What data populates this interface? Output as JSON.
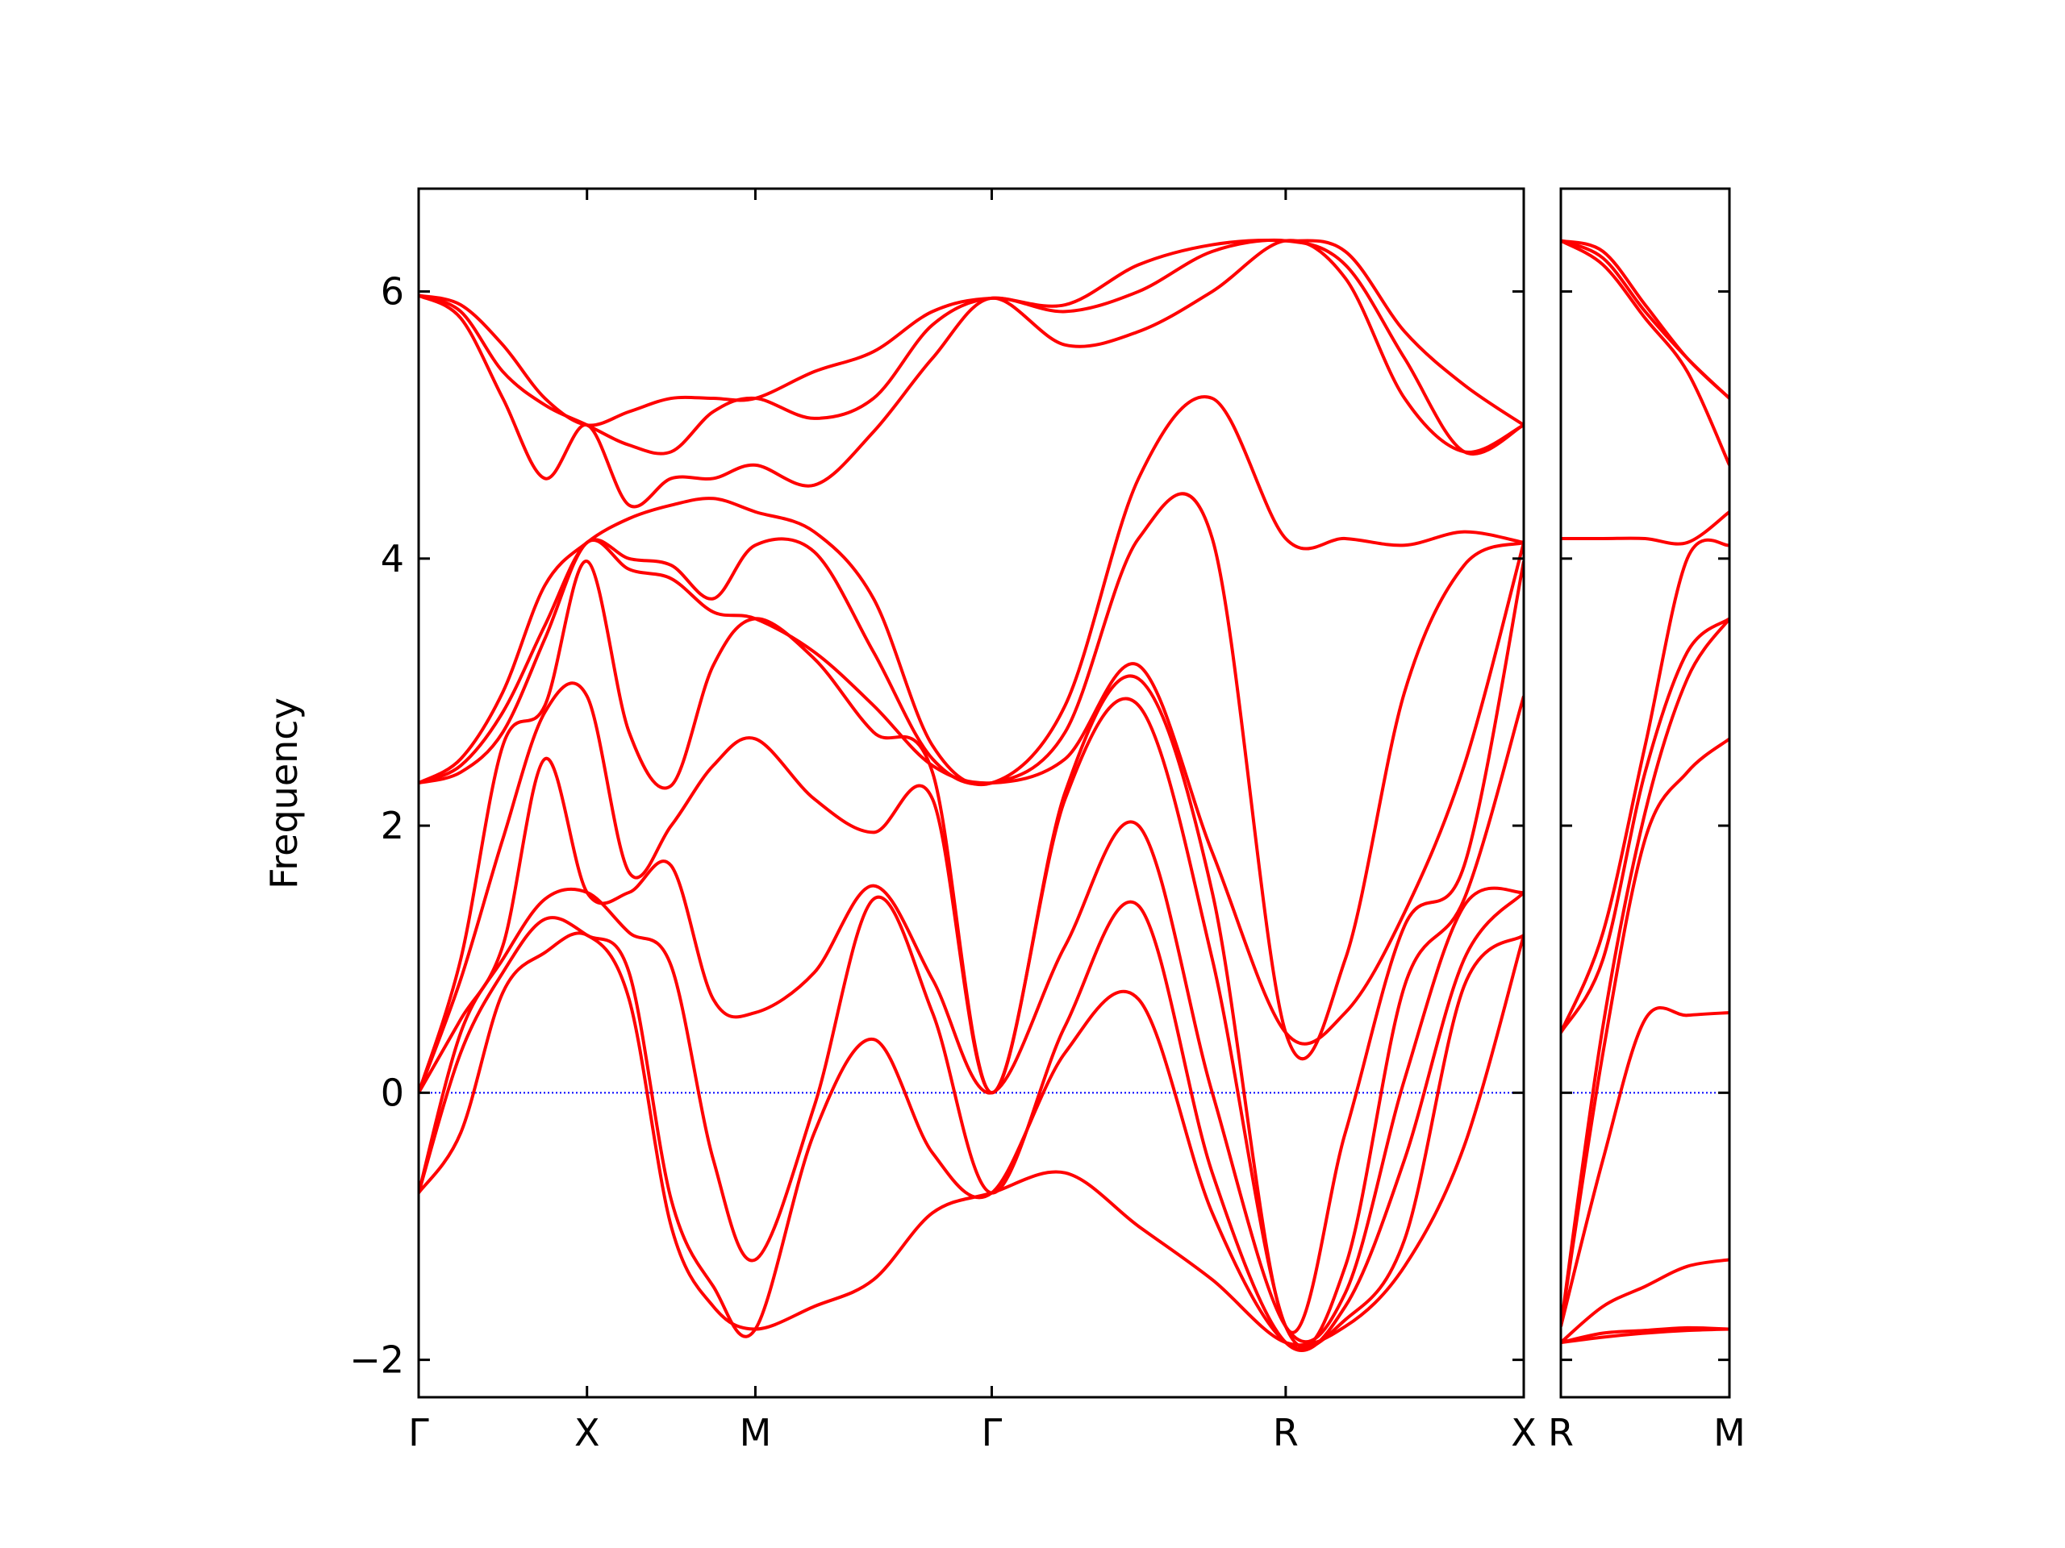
{
  "chart_data": [
    {
      "type": "line",
      "ylabel": "Frequency",
      "x": [
        0,
        0.125,
        0.25,
        0.375,
        0.5,
        0.625,
        0.75,
        0.875,
        1.0,
        1.175,
        1.351,
        1.526,
        1.702,
        1.92,
        2.138,
        2.357,
        2.575,
        2.752,
        2.928,
        3.105,
        3.282
      ],
      "xlim": [
        0,
        3.282
      ],
      "xticks": [
        {
          "value": 0,
          "label": "Γ"
        },
        {
          "value": 0.5,
          "label": "X"
        },
        {
          "value": 1.0,
          "label": "M"
        },
        {
          "value": 1.702,
          "label": "Γ"
        },
        {
          "value": 2.575,
          "label": "R"
        },
        {
          "value": 3.282,
          "label": "X"
        }
      ],
      "ylim": [
        -2.28,
        6.77
      ],
      "yticks": [
        {
          "value": -2,
          "label": "−2"
        },
        0,
        2,
        4,
        6
      ],
      "hline": 0,
      "hline_color": "#0000ff",
      "series": [
        {
          "color": "#ff0000",
          "values": [
            -0.75,
            -0.3,
            0.75,
            1.05,
            1.18,
            0.7,
            -1.0,
            -1.6,
            -1.77,
            -1.6,
            -1.4,
            -0.9,
            -0.75,
            -0.6,
            -1.0,
            -1.4,
            -1.87,
            -1.75,
            -1.3,
            -0.4,
            1.18
          ]
        },
        {
          "color": "#ff0000",
          "values": [
            -0.75,
            0.3,
            0.9,
            1.3,
            1.18,
            0.9,
            -0.8,
            -1.45,
            -1.77,
            -0.3,
            0.4,
            -0.45,
            -0.75,
            0.3,
            0.7,
            -0.9,
            -1.87,
            -1.7,
            -1.1,
            0.8,
            1.18
          ]
        },
        {
          "color": "#ff0000",
          "values": [
            -0.75,
            0.45,
            1.0,
            1.45,
            1.5,
            1.2,
            0.95,
            -0.5,
            -1.25,
            -0.1,
            1.45,
            0.6,
            -0.75,
            0.5,
            1.4,
            -0.6,
            -1.87,
            -1.6,
            -0.5,
            1.0,
            1.5
          ]
        },
        {
          "color": "#ff0000",
          "values": [
            0,
            0.55,
            1.1,
            2.5,
            1.5,
            1.5,
            1.7,
            0.7,
            0.6,
            0.9,
            1.55,
            0.85,
            0,
            1.1,
            2.0,
            0.0,
            -1.75,
            -1.5,
            0.1,
            1.4,
            1.5
          ]
        },
        {
          "color": "#ff0000",
          "values": [
            0,
            0.85,
            1.9,
            2.85,
            2.97,
            1.65,
            2.0,
            2.45,
            2.65,
            2.2,
            1.95,
            2.2,
            0,
            2.2,
            2.9,
            1.0,
            -1.75,
            -1.3,
            0.8,
            1.45,
            2.97
          ]
        },
        {
          "color": "#ff0000",
          "values": [
            0,
            1.0,
            2.6,
            2.9,
            3.98,
            2.7,
            2.3,
            3.2,
            3.55,
            3.25,
            2.7,
            2.4,
            0,
            2.25,
            3.1,
            1.5,
            -1.75,
            -0.3,
            1.25,
            1.7,
            3.98
          ]
        },
        {
          "color": "#ff0000",
          "values": [
            2.32,
            2.4,
            2.7,
            3.4,
            4.12,
            3.92,
            3.85,
            3.6,
            3.55,
            3.3,
            2.9,
            2.45,
            2.32,
            2.5,
            3.2,
            1.8,
            0.45,
            0.6,
            1.35,
            2.45,
            4.12
          ]
        },
        {
          "color": "#ff0000",
          "values": [
            2.32,
            2.45,
            2.85,
            3.5,
            4.12,
            4.0,
            3.95,
            3.7,
            4.1,
            4.05,
            3.3,
            2.5,
            2.32,
            2.7,
            4.15,
            4.15,
            0.45,
            1.0,
            3.0,
            3.95,
            4.12
          ]
        },
        {
          "color": "#ff0000",
          "values": [
            2.32,
            2.5,
            3.0,
            3.8,
            4.12,
            4.3,
            4.4,
            4.45,
            4.35,
            4.2,
            3.7,
            2.6,
            2.32,
            2.9,
            4.6,
            5.2,
            4.15,
            4.15,
            4.1,
            4.2,
            4.12
          ]
        },
        {
          "color": "#ff0000",
          "values": [
            5.97,
            5.8,
            5.2,
            4.6,
            5.0,
            4.4,
            4.6,
            4.6,
            4.7,
            4.55,
            4.95,
            5.5,
            5.95,
            5.6,
            5.7,
            6.0,
            6.38,
            6.1,
            5.2,
            4.8,
            5.0
          ]
        },
        {
          "color": "#ff0000",
          "values": [
            5.97,
            5.85,
            5.4,
            5.15,
            5.0,
            4.85,
            4.8,
            5.1,
            5.2,
            5.05,
            5.2,
            5.75,
            5.95,
            5.85,
            6.0,
            6.3,
            6.38,
            6.2,
            5.5,
            4.8,
            5.0
          ]
        },
        {
          "color": "#ff0000",
          "values": [
            5.97,
            5.9,
            5.6,
            5.2,
            5.0,
            5.1,
            5.2,
            5.2,
            5.2,
            5.4,
            5.55,
            5.85,
            5.95,
            5.9,
            6.2,
            6.35,
            6.38,
            6.3,
            5.7,
            5.3,
            5.0
          ]
        }
      ]
    },
    {
      "type": "line",
      "x": [
        0,
        0.125,
        0.25,
        0.375,
        0.5
      ],
      "xlim": [
        0,
        0.5
      ],
      "xticks": [
        {
          "value": 0,
          "label": "R"
        },
        {
          "value": 0.5,
          "label": "M"
        }
      ],
      "ylim": [
        -2.28,
        6.77
      ],
      "yticks": [
        -2,
        0,
        2,
        4,
        6
      ],
      "hline": 0,
      "hline_color": "#0000ff",
      "series": [
        {
          "color": "#ff0000",
          "values": [
            -1.87,
            -1.83,
            -1.8,
            -1.78,
            -1.77
          ]
        },
        {
          "color": "#ff0000",
          "values": [
            -1.87,
            -1.8,
            -1.78,
            -1.76,
            -1.77
          ]
        },
        {
          "color": "#ff0000",
          "values": [
            -1.87,
            -1.6,
            -1.45,
            -1.3,
            -1.25
          ]
        },
        {
          "color": "#ff0000",
          "values": [
            -1.75,
            -0.5,
            0.55,
            0.58,
            0.6
          ]
        },
        {
          "color": "#ff0000",
          "values": [
            -1.75,
            0.3,
            1.9,
            2.4,
            2.65
          ]
        },
        {
          "color": "#ff0000",
          "values": [
            -1.75,
            0.5,
            2.1,
            3.1,
            3.55
          ]
        },
        {
          "color": "#ff0000",
          "values": [
            0.45,
            1.0,
            2.4,
            3.3,
            3.55
          ]
        },
        {
          "color": "#ff0000",
          "values": [
            0.45,
            1.2,
            2.6,
            4.0,
            4.1
          ]
        },
        {
          "color": "#ff0000",
          "values": [
            4.15,
            4.15,
            4.15,
            4.12,
            4.35
          ]
        },
        {
          "color": "#ff0000",
          "values": [
            6.38,
            6.2,
            5.8,
            5.4,
            4.7
          ]
        },
        {
          "color": "#ff0000",
          "values": [
            6.38,
            6.25,
            5.85,
            5.5,
            5.2
          ]
        },
        {
          "color": "#ff0000",
          "values": [
            6.38,
            6.3,
            5.9,
            5.5,
            5.2
          ]
        }
      ]
    }
  ]
}
